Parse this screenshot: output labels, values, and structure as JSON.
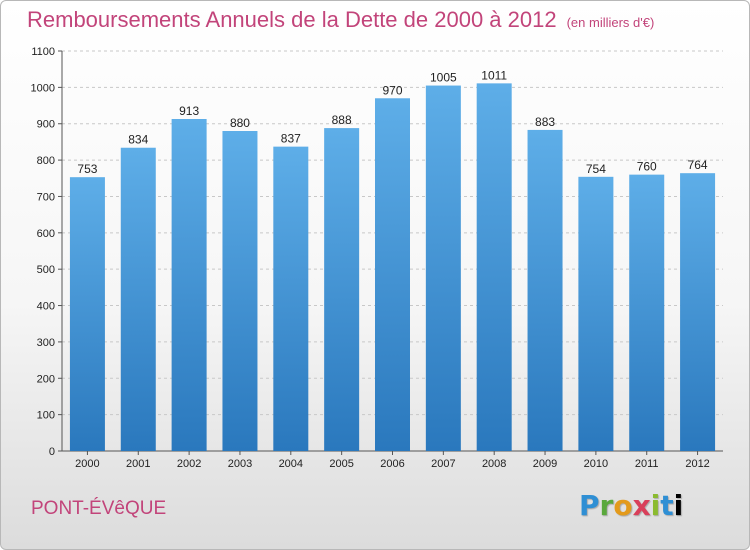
{
  "header": {
    "title": "Remboursements Annuels de la Dette de 2000 à 2012",
    "unit": "(en milliers d'€)"
  },
  "footer": {
    "location": "PONT-ÉVêQUE",
    "logo_letters": [
      "P",
      "r",
      "o",
      "x",
      "i",
      "t",
      "i"
    ]
  },
  "colors": {
    "title": "#c2447a",
    "bar_top": "#5eaee8",
    "bar_bottom": "#2a78bd"
  },
  "chart_data": {
    "type": "bar",
    "categories": [
      "2000",
      "2001",
      "2002",
      "2003",
      "2004",
      "2005",
      "2006",
      "2007",
      "2008",
      "2009",
      "2010",
      "2011",
      "2012"
    ],
    "values": [
      753,
      834,
      913,
      880,
      837,
      888,
      970,
      1005,
      1011,
      883,
      754,
      760,
      764
    ],
    "title": "Remboursements Annuels de la Dette de 2000 à 2012",
    "xlabel": "",
    "ylabel": "",
    "ylim": [
      0,
      1100
    ],
    "yticks": [
      0,
      100,
      200,
      300,
      400,
      500,
      600,
      700,
      800,
      900,
      1000,
      1100
    ],
    "grid": true,
    "legend": "none"
  }
}
